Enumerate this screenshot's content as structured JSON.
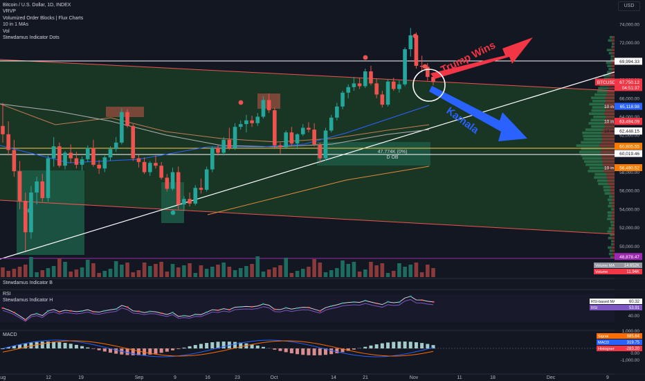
{
  "legend": {
    "symbol": "Bitcoin / U.S. Dollar, 1D, INDEX",
    "lines": [
      "VRVP",
      "Volumized Order Blocks | Flux Charts",
      "10 in 1 MAs",
      "Vol",
      "Stewdamus Indicator Dots"
    ]
  },
  "currency": "USD",
  "annotations": {
    "trump": "Trump Wins",
    "kamala": "Kamala",
    "ob_volume": "47.774K (0%)",
    "ob_label": "D OB"
  },
  "panes": {
    "indicator_b": "Stewdamus Indicator B",
    "rsi": "RSI",
    "indicator_h": "Stewdamus Indicator H",
    "macd": "MACD"
  },
  "colors": {
    "background": "#131722",
    "up": "#26a69a",
    "down": "#ef5350",
    "zone_fill": "#1b3a26",
    "order_block_green": "#1d5c47",
    "order_block_red": "#8a4a3c",
    "trump_arrow": "#f23645",
    "kamala_arrow": "#2962ff",
    "trendline": "#ffffff",
    "channel": "#ef5350"
  },
  "chart_data": {
    "type": "candlestick",
    "symbol": "BTCUSD",
    "interval": "1D",
    "price_axis": {
      "ticks": [
        48000,
        50000,
        52000,
        54000,
        56000,
        58000,
        60000,
        62000,
        64000,
        66000,
        68000,
        70000,
        72000,
        74000
      ],
      "tick_labels": [
        "48,000.00",
        "50,000.00",
        "52,000.00",
        "54,000.00",
        "56,000.00",
        "58,000.00",
        "60,000.00",
        "62,000.00",
        "64,000.00",
        "66,000.00",
        "68,000.00",
        "70,000.00",
        "72,000.00",
        "74,000.00"
      ],
      "range": [
        47200,
        75200
      ]
    },
    "time_axis": {
      "labels": [
        "Aug",
        "12",
        "19",
        "Sep",
        "9",
        "16",
        "23",
        "Oct",
        "14",
        "21",
        "Nov",
        "11",
        "18",
        "Dec",
        "9"
      ]
    },
    "price_labels": [
      {
        "text": "69,994.33",
        "value": 69994.33,
        "style": "white"
      },
      {
        "text": "BTCUSD",
        "value": 67750.12,
        "style": "red"
      },
      {
        "text": "67,750.12",
        "value": 67750.12,
        "style": "red"
      },
      {
        "text": "04:51:37",
        "value": 67300,
        "style": "red"
      },
      {
        "text": "10 in 1 MAs MA 3",
        "value": 65118.98,
        "style": "blue"
      },
      {
        "text": "65,118.98",
        "value": 65118.98,
        "style": "blue"
      },
      {
        "text": "10 in 1 MAs MA 1",
        "value": 63494.09,
        "style": "red"
      },
      {
        "text": "63,494.09",
        "value": 63494.09,
        "style": "red"
      },
      {
        "text": "10 in 1 MAs MA 2",
        "value": 62448.15,
        "style": "white"
      },
      {
        "text": "62,448.15",
        "value": 62448.15,
        "style": "white"
      },
      {
        "text": "60,805.55",
        "value": 60805.55,
        "style": "orange"
      },
      {
        "text": "60,019.46",
        "value": 60019.46,
        "style": "white"
      },
      {
        "text": "10 in 1 MAs MA 4",
        "value": 58490.52,
        "style": "orange"
      },
      {
        "text": "58,490.52",
        "value": 58490.52,
        "style": "orange"
      },
      {
        "text": "48,878.47",
        "value": 48878.47,
        "style": "purple"
      }
    ],
    "volume_labels": [
      {
        "text": "Volume MA",
        "value": "14.652K"
      },
      {
        "text": "Volume",
        "value": "11.94K"
      }
    ],
    "rsi_labels": [
      {
        "text": "RSI-based MA",
        "value": "60.32"
      },
      {
        "text": "RSI",
        "value": "53.91"
      }
    ],
    "rsi_axis": [
      "40.00"
    ],
    "macd_labels": [
      {
        "text": "Signal",
        "value": "885.64"
      },
      {
        "text": "MACD",
        "value": "319.75"
      },
      {
        "text": "Histogram",
        "value": "-283.20"
      }
    ],
    "macd_axis": [
      "1,000.00",
      "0.00",
      "-1,000.00"
    ],
    "candles": [
      [
        63000,
        65500,
        61200,
        62100
      ],
      [
        62100,
        63500,
        59800,
        60400
      ],
      [
        60400,
        61500,
        57500,
        58100
      ],
      [
        58100,
        59200,
        54000,
        54900
      ],
      [
        54900,
        55800,
        49500,
        51500
      ],
      [
        51500,
        56500,
        50800,
        55800
      ],
      [
        55800,
        57500,
        54500,
        57000
      ],
      [
        57000,
        57800,
        54800,
        55200
      ],
      [
        55200,
        59800,
        54800,
        59500
      ],
      [
        59500,
        61800,
        58600,
        60800
      ],
      [
        60800,
        61200,
        58500,
        58700
      ],
      [
        58700,
        60300,
        58300,
        60100
      ],
      [
        60100,
        61000,
        59000,
        59500
      ],
      [
        59500,
        60200,
        58400,
        58800
      ],
      [
        58800,
        59700,
        58200,
        59400
      ],
      [
        59400,
        60900,
        59100,
        60600
      ],
      [
        60600,
        61500,
        58600,
        58800
      ],
      [
        58800,
        59300,
        57800,
        58400
      ],
      [
        58400,
        59800,
        58000,
        59600
      ],
      [
        59600,
        60800,
        59200,
        60500
      ],
      [
        60500,
        61800,
        60200,
        61200
      ],
      [
        61200,
        64900,
        61000,
        64500
      ],
      [
        64500,
        64800,
        62800,
        63000
      ],
      [
        63000,
        63200,
        59200,
        59500
      ],
      [
        59500,
        59900,
        58500,
        59100
      ],
      [
        59100,
        59600,
        57800,
        58000
      ],
      [
        58000,
        59200,
        57600,
        59000
      ],
      [
        59000,
        59800,
        58400,
        58700
      ],
      [
        58700,
        59100,
        57200,
        57400
      ],
      [
        57400,
        57800,
        55900,
        56200
      ],
      [
        56200,
        58500,
        56000,
        58000
      ],
      [
        58000,
        58600,
        54000,
        54500
      ],
      [
        54500,
        55400,
        53800,
        55100
      ],
      [
        55100,
        55800,
        54300,
        54600
      ],
      [
        54600,
        56600,
        54400,
        56300
      ],
      [
        56300,
        57300,
        55700,
        56100
      ],
      [
        56100,
        58600,
        55900,
        58300
      ],
      [
        58300,
        60800,
        58000,
        60600
      ],
      [
        60600,
        60900,
        59800,
        60100
      ],
      [
        60100,
        61800,
        59800,
        61500
      ],
      [
        61500,
        62800,
        60400,
        60600
      ],
      [
        60600,
        63300,
        60400,
        62900
      ],
      [
        62900,
        63600,
        62600,
        63200
      ],
      [
        63200,
        64200,
        62300,
        63600
      ],
      [
        63600,
        64100,
        62900,
        63300
      ],
      [
        63300,
        64400,
        63000,
        64000
      ],
      [
        64000,
        66200,
        63800,
        65800
      ],
      [
        65800,
        66500,
        64400,
        64700
      ],
      [
        64700,
        65000,
        60500,
        60900
      ],
      [
        60900,
        61200,
        60000,
        60700
      ],
      [
        60700,
        62500,
        60500,
        62300
      ],
      [
        62300,
        62900,
        60900,
        61100
      ],
      [
        61100,
        62200,
        60500,
        62100
      ],
      [
        62100,
        63200,
        61900,
        62800
      ],
      [
        62800,
        63400,
        62300,
        62600
      ],
      [
        62600,
        63300,
        60800,
        61000
      ],
      [
        61000,
        61200,
        59000,
        59500
      ],
      [
        59500,
        62800,
        59200,
        62500
      ],
      [
        62500,
        64200,
        62300,
        63900
      ],
      [
        63900,
        65500,
        63600,
        65100
      ],
      [
        65100,
        66800,
        64800,
        66600
      ],
      [
        66600,
        67500,
        66000,
        67200
      ],
      [
        67200,
        68300,
        66800,
        67600
      ],
      [
        67600,
        68200,
        67000,
        67300
      ],
      [
        67300,
        69200,
        67100,
        68900
      ],
      [
        68900,
        69500,
        67400,
        67600
      ],
      [
        67600,
        68100,
        66000,
        66400
      ],
      [
        66400,
        66800,
        65000,
        65300
      ],
      [
        65300,
        68000,
        65100,
        67800
      ],
      [
        67800,
        68200,
        66800,
        67000
      ],
      [
        67000,
        67900,
        66600,
        67500
      ],
      [
        67500,
        71500,
        67300,
        71300
      ],
      [
        71300,
        73600,
        70500,
        72800
      ],
      [
        72800,
        73100,
        69200,
        69500
      ],
      [
        69500,
        70600,
        68800,
        69400
      ],
      [
        69400,
        69800,
        67900,
        68300
      ],
      [
        68300,
        68800,
        67400,
        67750
      ]
    ]
  }
}
